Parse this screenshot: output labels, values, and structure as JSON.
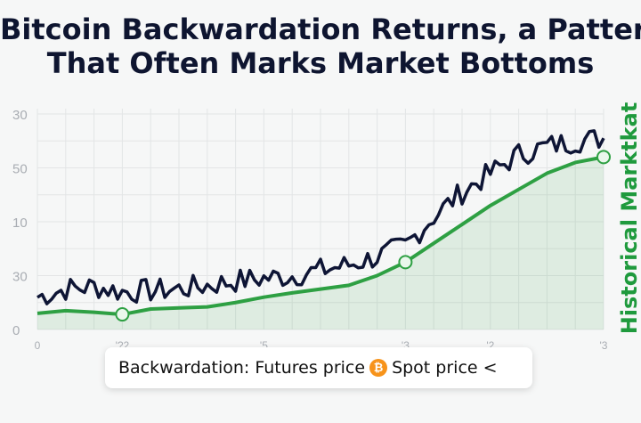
{
  "title_line1": "Bitcoin Backwardation Returns, a Pattern",
  "title_line2": "That Often Marks Market Bottoms",
  "callout": {
    "part1": "Backwardation: Futures price",
    "coin_symbol": "₿",
    "part2": "Spot price <"
  },
  "chart_data": {
    "type": "line",
    "title": "Bitcoin Backwardation Returns, a Pattern That Often Marks Market Bottoms",
    "ylabel_right": "Historical Marktkat",
    "y_tick_labels": [
      "0",
      "30",
      "10",
      "50",
      "30"
    ],
    "y_tick_values": [
      0,
      1,
      2,
      3,
      4
    ],
    "x_tick_labels": [
      "0",
      "'?2",
      "'5",
      "'3",
      "'2",
      "'3"
    ],
    "x_tick_positions": [
      0,
      3,
      8,
      13,
      16,
      20
    ],
    "x_range": [
      0,
      20
    ],
    "ylim": [
      0,
      4
    ],
    "grid": true,
    "series": [
      {
        "name": "",
        "color": "#0e1535",
        "points": [
          [
            0,
            0.6
          ],
          [
            1,
            0.75
          ],
          [
            2,
            0.8
          ],
          [
            3,
            0.7
          ],
          [
            4,
            0.72
          ],
          [
            5,
            0.75
          ],
          [
            6,
            0.82
          ],
          [
            7,
            0.9
          ],
          [
            8,
            0.95
          ],
          [
            9,
            1.0
          ],
          [
            10,
            1.1
          ],
          [
            11,
            1.2
          ],
          [
            12,
            1.35
          ],
          [
            13,
            1.55
          ],
          [
            14,
            2.1
          ],
          [
            15,
            2.55
          ],
          [
            16,
            2.9
          ],
          [
            17,
            3.25
          ],
          [
            18,
            3.4
          ],
          [
            19,
            3.5
          ],
          [
            20,
            3.55
          ]
        ]
      },
      {
        "name": "",
        "color": "#2ea043",
        "points": [
          [
            0,
            0.3
          ],
          [
            1,
            0.35
          ],
          [
            2,
            0.32
          ],
          [
            3,
            0.28
          ],
          [
            4,
            0.38
          ],
          [
            5,
            0.4
          ],
          [
            6,
            0.42
          ],
          [
            7,
            0.5
          ],
          [
            8,
            0.6
          ],
          [
            9,
            0.68
          ],
          [
            10,
            0.75
          ],
          [
            11,
            0.82
          ],
          [
            12,
            1.0
          ],
          [
            13,
            1.25
          ],
          [
            14,
            1.6
          ],
          [
            15,
            1.95
          ],
          [
            16,
            2.3
          ],
          [
            17,
            2.6
          ],
          [
            18,
            2.9
          ],
          [
            19,
            3.1
          ],
          [
            20,
            3.2
          ]
        ]
      }
    ],
    "markers": [
      [
        3,
        0.28
      ],
      [
        13,
        1.25
      ],
      [
        20,
        3.2
      ]
    ]
  }
}
